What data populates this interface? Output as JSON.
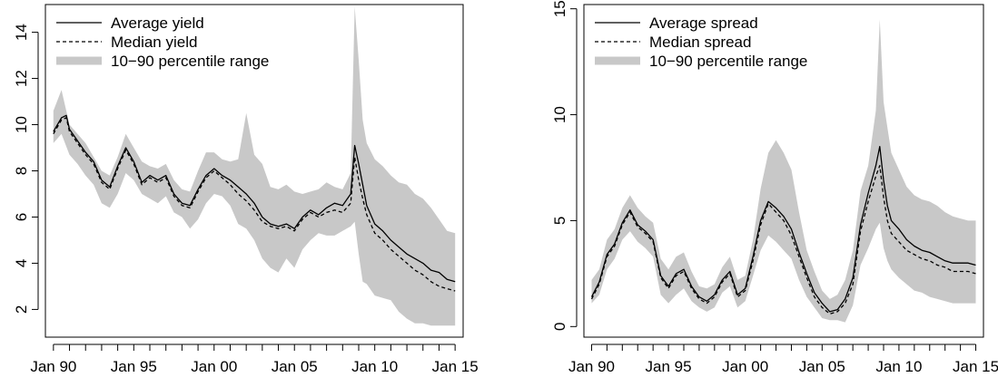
{
  "colors": {
    "band": "#c8c8c8",
    "line": "#000000",
    "frame": "#000000"
  },
  "chart_data": [
    {
      "type": "line",
      "title": "",
      "xlabel": "",
      "ylabel": "",
      "x_unit": "year",
      "xlim": [
        1989.5,
        2015.5
      ],
      "ylim": [
        0.8,
        15.2
      ],
      "x_ticks": [
        "Jan 90",
        "Jan 95",
        "Jan 00",
        "Jan 05",
        "Jan 10",
        "Jan 15"
      ],
      "x_tick_values": [
        1990,
        1995,
        2000,
        2005,
        2010,
        2015
      ],
      "y_ticks": [
        2,
        4,
        6,
        8,
        10,
        12,
        14
      ],
      "legend": {
        "position": "top-left",
        "entries": [
          "Average yield",
          "Median yield",
          "10−90 percentile range"
        ]
      },
      "band": {
        "name": "10−90 percentile range",
        "x": [
          1990.0,
          1990.5,
          1991.0,
          1991.5,
          1992.0,
          1992.5,
          1993.0,
          1993.5,
          1994.0,
          1994.5,
          1995.0,
          1995.5,
          1996.0,
          1996.5,
          1997.0,
          1997.5,
          1998.0,
          1998.5,
          1999.0,
          1999.5,
          2000.0,
          2000.5,
          2001.0,
          2001.5,
          2002.0,
          2002.5,
          2003.0,
          2003.5,
          2004.0,
          2004.5,
          2005.0,
          2005.5,
          2006.0,
          2006.5,
          2007.0,
          2007.5,
          2008.0,
          2008.5,
          2008.75,
          2009.0,
          2009.25,
          2009.5,
          2010.0,
          2010.5,
          2011.0,
          2011.5,
          2012.0,
          2012.5,
          2013.0,
          2013.5,
          2014.0,
          2014.5,
          2015.0
        ],
        "low": [
          9.2,
          9.6,
          8.7,
          8.3,
          7.8,
          7.4,
          6.6,
          6.4,
          7.0,
          7.9,
          7.6,
          7.0,
          6.8,
          6.6,
          6.9,
          6.2,
          6.0,
          5.5,
          5.9,
          6.6,
          7.0,
          6.9,
          6.5,
          5.7,
          5.5,
          5.0,
          4.2,
          3.8,
          3.6,
          4.2,
          3.8,
          4.6,
          5.0,
          5.3,
          5.2,
          5.2,
          5.4,
          5.6,
          5.8,
          4.4,
          3.2,
          3.1,
          2.6,
          2.5,
          2.4,
          1.9,
          1.6,
          1.4,
          1.4,
          1.3,
          1.3,
          1.3,
          1.3
        ],
        "high": [
          10.6,
          11.5,
          10.0,
          9.6,
          9.2,
          8.6,
          8.0,
          7.8,
          8.6,
          9.6,
          9.0,
          8.4,
          8.2,
          8.1,
          8.3,
          7.6,
          7.2,
          7.1,
          8.0,
          8.8,
          8.8,
          8.5,
          8.4,
          8.5,
          10.5,
          8.7,
          8.3,
          7.3,
          7.2,
          7.4,
          7.1,
          7.0,
          7.1,
          7.2,
          7.5,
          7.3,
          7.2,
          7.9,
          15.1,
          12.8,
          10.2,
          9.2,
          8.5,
          8.2,
          7.8,
          7.5,
          7.4,
          7.0,
          6.8,
          6.4,
          5.9,
          5.4,
          5.3
        ]
      },
      "series": [
        {
          "name": "Average yield",
          "style": "solid",
          "x": [
            1990.0,
            1990.5,
            1990.8,
            1991.0,
            1991.5,
            1992.0,
            1992.5,
            1993.0,
            1993.5,
            1994.0,
            1994.5,
            1995.0,
            1995.5,
            1996.0,
            1996.5,
            1997.0,
            1997.5,
            1998.0,
            1998.5,
            1999.0,
            1999.5,
            2000.0,
            2000.5,
            2001.0,
            2001.5,
            2002.0,
            2002.5,
            2003.0,
            2003.5,
            2004.0,
            2004.5,
            2005.0,
            2005.5,
            2006.0,
            2006.5,
            2007.0,
            2007.5,
            2008.0,
            2008.5,
            2008.75,
            2009.0,
            2009.25,
            2009.5,
            2010.0,
            2010.5,
            2011.0,
            2011.5,
            2012.0,
            2012.5,
            2013.0,
            2013.5,
            2014.0,
            2014.5,
            2015.0
          ],
          "values": [
            9.7,
            10.3,
            10.4,
            9.8,
            9.3,
            8.8,
            8.4,
            7.6,
            7.3,
            8.2,
            9.0,
            8.4,
            7.5,
            7.8,
            7.6,
            7.8,
            7.0,
            6.6,
            6.5,
            7.2,
            7.8,
            8.1,
            7.8,
            7.6,
            7.3,
            7.0,
            6.6,
            6.0,
            5.7,
            5.6,
            5.7,
            5.5,
            6.0,
            6.3,
            6.1,
            6.4,
            6.6,
            6.5,
            7.0,
            9.1,
            8.3,
            7.4,
            6.5,
            5.7,
            5.4,
            5.0,
            4.7,
            4.4,
            4.2,
            4.0,
            3.7,
            3.6,
            3.3,
            3.2
          ]
        },
        {
          "name": "Median yield",
          "style": "dashed",
          "x": [
            1990.0,
            1990.5,
            1990.8,
            1991.0,
            1991.5,
            1992.0,
            1992.5,
            1993.0,
            1993.5,
            1994.0,
            1994.5,
            1995.0,
            1995.5,
            1996.0,
            1996.5,
            1997.0,
            1997.5,
            1998.0,
            1998.5,
            1999.0,
            1999.5,
            2000.0,
            2000.5,
            2001.0,
            2001.5,
            2002.0,
            2002.5,
            2003.0,
            2003.5,
            2004.0,
            2004.5,
            2005.0,
            2005.5,
            2006.0,
            2006.5,
            2007.0,
            2007.5,
            2008.0,
            2008.5,
            2008.75,
            2009.0,
            2009.25,
            2009.5,
            2010.0,
            2010.5,
            2011.0,
            2011.5,
            2012.0,
            2012.5,
            2013.0,
            2013.5,
            2014.0,
            2014.5,
            2015.0
          ],
          "values": [
            9.6,
            10.2,
            10.3,
            9.7,
            9.2,
            8.7,
            8.3,
            7.5,
            7.2,
            8.1,
            8.9,
            8.3,
            7.4,
            7.7,
            7.5,
            7.7,
            6.9,
            6.5,
            6.4,
            7.1,
            7.7,
            8.0,
            7.7,
            7.4,
            7.0,
            6.7,
            6.3,
            5.8,
            5.6,
            5.5,
            5.6,
            5.4,
            5.9,
            6.2,
            6.0,
            6.2,
            6.3,
            6.2,
            6.6,
            8.6,
            7.6,
            6.8,
            6.1,
            5.3,
            5.0,
            4.6,
            4.3,
            4.0,
            3.7,
            3.5,
            3.2,
            3.0,
            2.9,
            2.8
          ]
        }
      ]
    },
    {
      "type": "line",
      "title": "",
      "xlabel": "",
      "ylabel": "",
      "x_unit": "year",
      "xlim": [
        1989.5,
        2015.5
      ],
      "ylim": [
        -0.5,
        15.2
      ],
      "x_ticks": [
        "Jan 90",
        "Jan 95",
        "Jan 00",
        "Jan 05",
        "Jan 10",
        "Jan 15"
      ],
      "x_tick_values": [
        1990,
        1995,
        2000,
        2005,
        2010,
        2015
      ],
      "y_ticks": [
        0,
        5,
        10,
        15
      ],
      "legend": {
        "position": "top-left",
        "entries": [
          "Average spread",
          "Median spread",
          "10−90 percentile range"
        ]
      },
      "band": {
        "name": "10−90 percentile range",
        "x": [
          1990.0,
          1990.5,
          1991.0,
          1991.5,
          1992.0,
          1992.5,
          1993.0,
          1993.5,
          1994.0,
          1994.5,
          1995.0,
          1995.5,
          1996.0,
          1996.5,
          1997.0,
          1997.5,
          1998.0,
          1998.5,
          1999.0,
          1999.5,
          2000.0,
          2000.5,
          2001.0,
          2001.5,
          2002.0,
          2002.5,
          2003.0,
          2003.5,
          2004.0,
          2004.5,
          2005.0,
          2005.5,
          2006.0,
          2006.5,
          2007.0,
          2007.5,
          2008.0,
          2008.5,
          2008.75,
          2009.0,
          2009.25,
          2009.5,
          2010.0,
          2010.5,
          2011.0,
          2011.5,
          2012.0,
          2012.5,
          2013.0,
          2013.5,
          2014.0,
          2014.5,
          2015.0
        ],
        "low": [
          1.1,
          1.5,
          2.7,
          3.2,
          4.1,
          4.5,
          4.0,
          3.7,
          3.3,
          1.5,
          1.1,
          1.5,
          1.8,
          1.2,
          0.9,
          0.7,
          0.9,
          1.6,
          1.9,
          0.9,
          1.2,
          2.4,
          3.6,
          4.3,
          4.0,
          3.6,
          3.2,
          2.2,
          1.4,
          0.9,
          0.4,
          0.3,
          0.3,
          0.2,
          1.0,
          2.9,
          3.7,
          4.6,
          4.9,
          3.7,
          3.1,
          2.7,
          2.3,
          2.0,
          1.7,
          1.6,
          1.4,
          1.3,
          1.2,
          1.1,
          1.1,
          1.1,
          1.1
        ],
        "high": [
          2.2,
          2.7,
          4.1,
          4.6,
          5.6,
          6.2,
          5.6,
          5.2,
          4.9,
          3.2,
          2.7,
          3.3,
          3.5,
          2.6,
          1.9,
          1.8,
          2.0,
          2.8,
          3.3,
          2.2,
          2.4,
          4.1,
          6.5,
          8.2,
          8.8,
          8.2,
          7.4,
          5.4,
          3.6,
          2.6,
          1.7,
          1.3,
          1.5,
          2.2,
          3.6,
          6.4,
          7.6,
          10.2,
          14.5,
          10.6,
          9.4,
          8.2,
          7.4,
          6.6,
          6.2,
          6.0,
          5.9,
          5.7,
          5.4,
          5.2,
          5.1,
          5.0,
          5.0
        ]
      },
      "series": [
        {
          "name": "Average spread",
          "style": "solid",
          "x": [
            1990.0,
            1990.5,
            1991.0,
            1991.5,
            1992.0,
            1992.5,
            1993.0,
            1993.5,
            1994.0,
            1994.5,
            1995.0,
            1995.5,
            1996.0,
            1996.5,
            1997.0,
            1997.5,
            1998.0,
            1998.5,
            1999.0,
            1999.5,
            2000.0,
            2000.5,
            2001.0,
            2001.5,
            2002.0,
            2002.5,
            2003.0,
            2003.5,
            2004.0,
            2004.5,
            2005.0,
            2005.5,
            2006.0,
            2006.5,
            2007.0,
            2007.5,
            2008.0,
            2008.5,
            2008.75,
            2009.0,
            2009.25,
            2009.5,
            2010.0,
            2010.5,
            2011.0,
            2011.5,
            2012.0,
            2012.5,
            2013.0,
            2013.5,
            2014.0,
            2014.5,
            2015.0
          ],
          "values": [
            1.4,
            2.1,
            3.4,
            3.9,
            4.9,
            5.5,
            4.8,
            4.5,
            4.1,
            2.4,
            1.9,
            2.5,
            2.7,
            1.9,
            1.4,
            1.2,
            1.5,
            2.2,
            2.6,
            1.5,
            1.8,
            3.3,
            5.0,
            5.9,
            5.6,
            5.2,
            4.6,
            3.5,
            2.5,
            1.6,
            1.1,
            0.7,
            0.8,
            1.3,
            2.3,
            4.8,
            6.3,
            7.6,
            8.5,
            6.9,
            5.7,
            5.0,
            4.6,
            4.1,
            3.8,
            3.6,
            3.5,
            3.3,
            3.1,
            3.0,
            3.0,
            3.0,
            2.9
          ]
        },
        {
          "name": "Median spread",
          "style": "dashed",
          "x": [
            1990.0,
            1990.5,
            1991.0,
            1991.5,
            1992.0,
            1992.5,
            1993.0,
            1993.5,
            1994.0,
            1994.5,
            1995.0,
            1995.5,
            1996.0,
            1996.5,
            1997.0,
            1997.5,
            1998.0,
            1998.5,
            1999.0,
            1999.5,
            2000.0,
            2000.5,
            2001.0,
            2001.5,
            2002.0,
            2002.5,
            2003.0,
            2003.5,
            2004.0,
            2004.5,
            2005.0,
            2005.5,
            2006.0,
            2006.5,
            2007.0,
            2007.5,
            2008.0,
            2008.5,
            2008.75,
            2009.0,
            2009.25,
            2009.5,
            2010.0,
            2010.5,
            2011.0,
            2011.5,
            2012.0,
            2012.5,
            2013.0,
            2013.5,
            2014.0,
            2014.5,
            2015.0
          ],
          "values": [
            1.3,
            2.0,
            3.3,
            3.8,
            4.8,
            5.4,
            4.7,
            4.4,
            4.0,
            2.3,
            1.8,
            2.4,
            2.6,
            1.8,
            1.3,
            1.1,
            1.4,
            2.1,
            2.5,
            1.4,
            1.7,
            3.1,
            4.8,
            5.8,
            5.4,
            5.0,
            4.3,
            3.3,
            2.3,
            1.4,
            0.9,
            0.6,
            0.7,
            1.1,
            2.0,
            4.5,
            5.9,
            7.1,
            7.6,
            6.1,
            5.0,
            4.4,
            4.0,
            3.6,
            3.4,
            3.2,
            3.1,
            2.9,
            2.8,
            2.6,
            2.6,
            2.6,
            2.5
          ]
        }
      ]
    }
  ]
}
